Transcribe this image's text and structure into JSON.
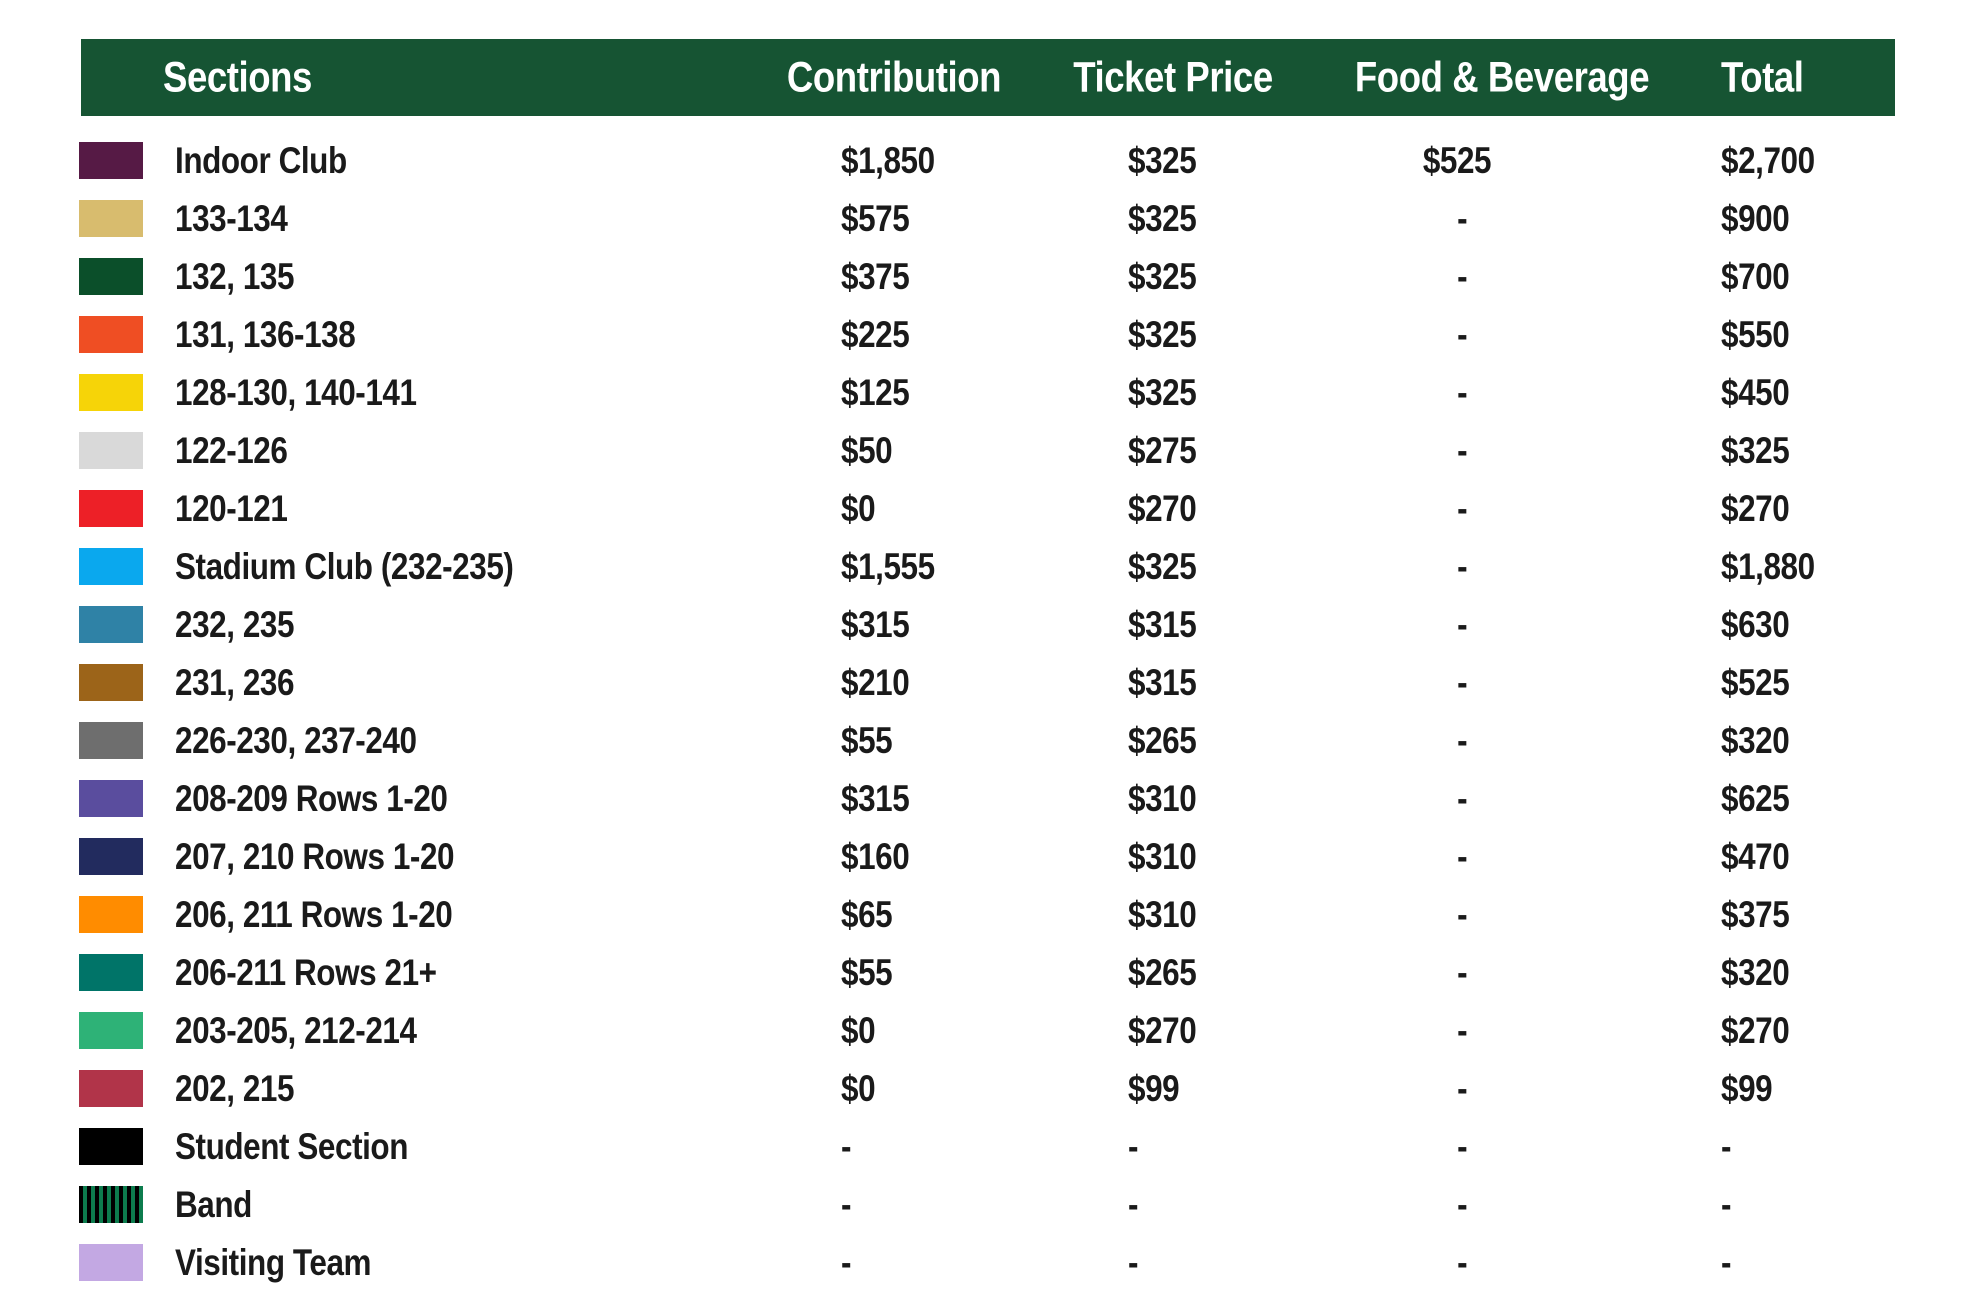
{
  "header": {
    "background_color": "#165433",
    "text_color": "#ffffff",
    "columns": [
      {
        "label": "Sections"
      },
      {
        "label": "Contribution"
      },
      {
        "label": "Ticket Price"
      },
      {
        "label": "Food & Beverage"
      },
      {
        "label": "Total"
      }
    ]
  },
  "rows": [
    {
      "section": "Indoor Club",
      "color": "#561a45",
      "contribution": "$1,850",
      "ticket_price": "$325",
      "food_beverage": "$525",
      "total": "$2,700"
    },
    {
      "section": "133-134",
      "color": "#d8bc6e",
      "contribution": "$575",
      "ticket_price": "$325",
      "food_beverage": "-",
      "total": "$900"
    },
    {
      "section": "132, 135",
      "color": "#0b4f2a",
      "contribution": "$375",
      "ticket_price": "$325",
      "food_beverage": "-",
      "total": "$700"
    },
    {
      "section": "131, 136-138",
      "color": "#ef4e23",
      "contribution": "$225",
      "ticket_price": "$325",
      "food_beverage": "-",
      "total": "$550"
    },
    {
      "section": "128-130, 140-141",
      "color": "#f6d408",
      "contribution": "$125",
      "ticket_price": "$325",
      "food_beverage": "-",
      "total": "$450"
    },
    {
      "section": "122-126",
      "color": "#d9d9d9",
      "contribution": "$50",
      "ticket_price": "$275",
      "food_beverage": "-",
      "total": "$325"
    },
    {
      "section": "120-121",
      "color": "#ed2027",
      "contribution": "$0",
      "ticket_price": "$270",
      "food_beverage": "-",
      "total": "$270"
    },
    {
      "section": "Stadium Club (232-235)",
      "color": "#0aa8ee",
      "contribution": "$1,555",
      "ticket_price": "$325",
      "food_beverage": "-",
      "total": "$1,880"
    },
    {
      "section": "232, 235",
      "color": "#2f82a6",
      "contribution": "$315",
      "ticket_price": "$315",
      "food_beverage": "-",
      "total": "$630"
    },
    {
      "section": "231, 236",
      "color": "#9c6419",
      "contribution": "$210",
      "ticket_price": "$315",
      "food_beverage": "-",
      "total": "$525"
    },
    {
      "section": "226-230, 237-240",
      "color": "#6e6e6e",
      "contribution": "$55",
      "ticket_price": "$265",
      "food_beverage": "-",
      "total": "$320"
    },
    {
      "section": "208-209 Rows 1-20",
      "color": "#5a4d9e",
      "contribution": "$315",
      "ticket_price": "$310",
      "food_beverage": "-",
      "total": "$625"
    },
    {
      "section": "207, 210 Rows 1-20",
      "color": "#222b5e",
      "contribution": "$160",
      "ticket_price": "$310",
      "food_beverage": "-",
      "total": "$470"
    },
    {
      "section": "206, 211 Rows 1-20",
      "color": "#ff8c00",
      "contribution": "$65",
      "ticket_price": "$310",
      "food_beverage": "-",
      "total": "$375"
    },
    {
      "section": "206-211 Rows 21+",
      "color": "#007468",
      "contribution": "$55",
      "ticket_price": "$265",
      "food_beverage": "-",
      "total": "$320"
    },
    {
      "section": "203-205, 212-214",
      "color": "#2eb277",
      "contribution": "$0",
      "ticket_price": "$270",
      "food_beverage": "-",
      "total": "$270"
    },
    {
      "section": "202, 215",
      "color": "#b13449",
      "contribution": "$0",
      "ticket_price": "$99",
      "food_beverage": "-",
      "total": "$99"
    },
    {
      "section": "Student Section",
      "color": "#000000",
      "contribution": "-",
      "ticket_price": "-",
      "food_beverage": "-",
      "total": "-"
    },
    {
      "section": "Band",
      "color": "#0d7c4e",
      "pattern": "vertical-stripes",
      "stripe_color": "#000000",
      "contribution": "-",
      "ticket_price": "-",
      "food_beverage": "-",
      "total": "-"
    },
    {
      "section": "Visiting Team",
      "color": "#c3a8e3",
      "contribution": "-",
      "ticket_price": "-",
      "food_beverage": "-",
      "total": "-"
    }
  ],
  "chart_data": {
    "type": "table",
    "title": "Stadium sections pricing",
    "columns": [
      "Sections",
      "Contribution",
      "Ticket Price",
      "Food & Beverage",
      "Total"
    ],
    "rows": [
      [
        "Indoor Club",
        "$1,850",
        "$325",
        "$525",
        "$2,700"
      ],
      [
        "133-134",
        "$575",
        "$325",
        "-",
        "$900"
      ],
      [
        "132, 135",
        "$375",
        "$325",
        "-",
        "$700"
      ],
      [
        "131, 136-138",
        "$225",
        "$325",
        "-",
        "$550"
      ],
      [
        "128-130, 140-141",
        "$125",
        "$325",
        "-",
        "$450"
      ],
      [
        "122-126",
        "$50",
        "$275",
        "-",
        "$325"
      ],
      [
        "120-121",
        "$0",
        "$270",
        "-",
        "$270"
      ],
      [
        "Stadium Club (232-235)",
        "$1,555",
        "$325",
        "-",
        "$1,880"
      ],
      [
        "232, 235",
        "$315",
        "$315",
        "-",
        "$630"
      ],
      [
        "231, 236",
        "$210",
        "$315",
        "-",
        "$525"
      ],
      [
        "226-230, 237-240",
        "$55",
        "$265",
        "-",
        "$320"
      ],
      [
        "208-209 Rows 1-20",
        "$315",
        "$310",
        "-",
        "$625"
      ],
      [
        "207, 210 Rows 1-20",
        "$160",
        "$310",
        "-",
        "$470"
      ],
      [
        "206, 211 Rows 1-20",
        "$65",
        "$310",
        "-",
        "$375"
      ],
      [
        "206-211 Rows 21+",
        "$55",
        "$265",
        "-",
        "$320"
      ],
      [
        "203-205, 212-214",
        "$0",
        "$270",
        "-",
        "$270"
      ],
      [
        "202, 215",
        "$0",
        "$99",
        "-",
        "$99"
      ],
      [
        "Student Section",
        "-",
        "-",
        "-",
        "-"
      ],
      [
        "Band",
        "-",
        "-",
        "-",
        "-"
      ],
      [
        "Visiting Team",
        "-",
        "-",
        "-",
        "-"
      ]
    ]
  }
}
